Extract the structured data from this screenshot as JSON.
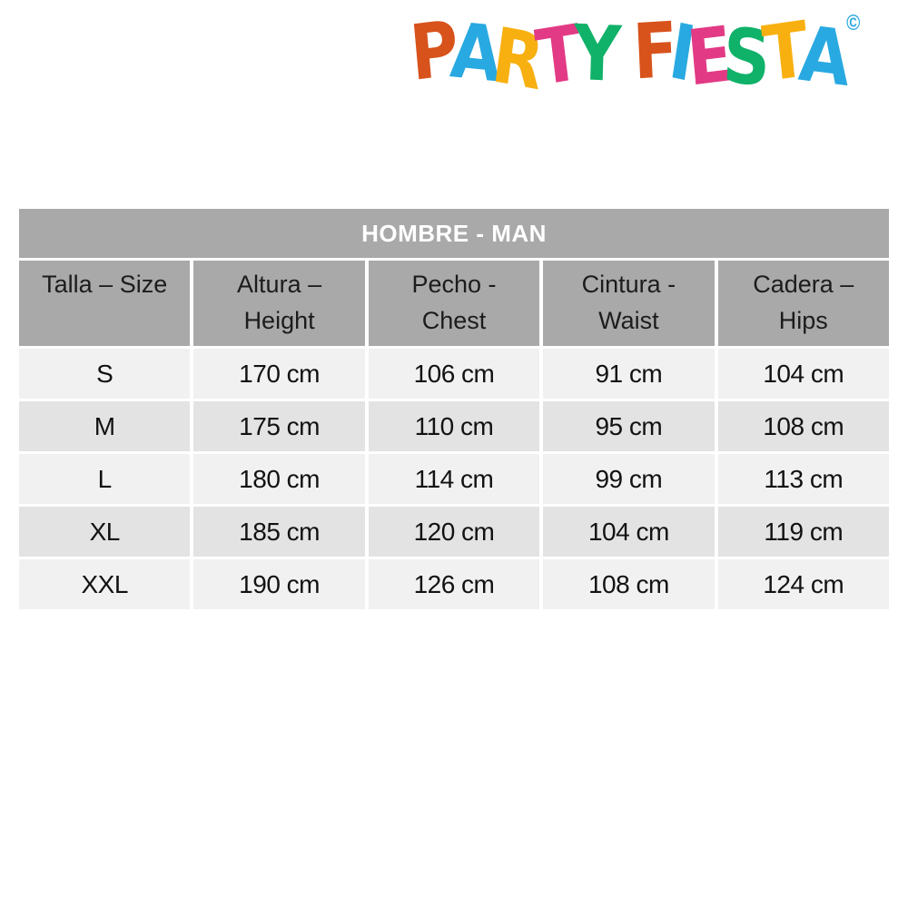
{
  "logo": {
    "words": [
      {
        "letters": [
          {
            "ch": "P",
            "color": "#d8521c"
          },
          {
            "ch": "A",
            "color": "#29a9e1"
          },
          {
            "ch": "R",
            "color": "#f8b011"
          },
          {
            "ch": "T",
            "color": "#e23a85"
          },
          {
            "ch": "Y",
            "color": "#10b169"
          }
        ]
      },
      {
        "letters": [
          {
            "ch": "F",
            "color": "#d8521c"
          },
          {
            "ch": "I",
            "color": "#29a9e1"
          },
          {
            "ch": "E",
            "color": "#e23a85"
          },
          {
            "ch": "S",
            "color": "#10b169"
          },
          {
            "ch": "T",
            "color": "#f8b011"
          },
          {
            "ch": "A",
            "color": "#29a9e1"
          }
        ]
      }
    ],
    "copyright": "©",
    "copyright_color": "#29a9e1"
  },
  "chart_data": {
    "type": "table",
    "title": "HOMBRE - MAN",
    "columns": [
      "Talla – Size",
      "Altura – Height",
      "Pecho - Chest",
      "Cintura - Waist",
      "Cadera – Hips"
    ],
    "rows": [
      [
        "S",
        "170 cm",
        "106 cm",
        "91 cm",
        "104 cm"
      ],
      [
        "M",
        "175 cm",
        "110 cm",
        "95 cm",
        "108 cm"
      ],
      [
        "L",
        "180 cm",
        "114 cm",
        "99 cm",
        "113 cm"
      ],
      [
        "XL",
        "185 cm",
        "120 cm",
        "104 cm",
        "119 cm"
      ],
      [
        "XXL",
        "190 cm",
        "126 cm",
        "108 cm",
        "124 cm"
      ]
    ]
  },
  "colors": {
    "title_bg": "#a9a9a9",
    "title_text": "#ffffff",
    "header_bg": "#a9a9a9",
    "header_text": "#1c1c1c",
    "row_light": "#f1f1f1",
    "row_dark": "#e3e3e3",
    "cell_text": "#121212",
    "gap": "#ffffff"
  }
}
